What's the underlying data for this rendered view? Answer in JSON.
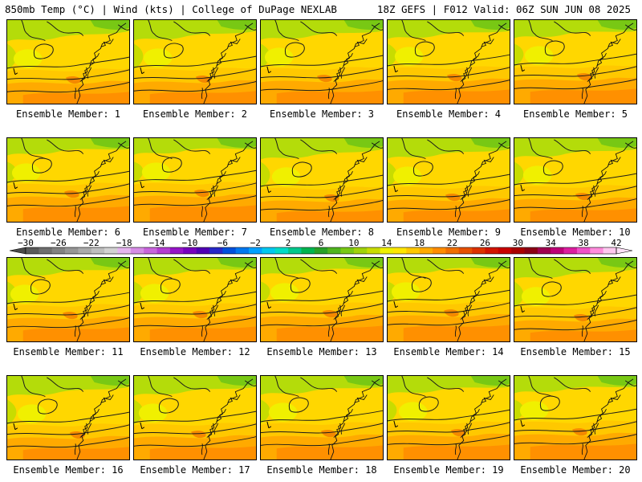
{
  "header": {
    "left": "850mb Temp (°C) | Wind (kts) | College of DuPage NEXLAB",
    "right": "18Z GEFS | F012 Valid: 06Z SUN JUN 08 2025"
  },
  "members": [
    {
      "label": "Ensemble Member: 1"
    },
    {
      "label": "Ensemble Member: 2"
    },
    {
      "label": "Ensemble Member: 3"
    },
    {
      "label": "Ensemble Member: 4"
    },
    {
      "label": "Ensemble Member: 5"
    },
    {
      "label": "Ensemble Member: 6"
    },
    {
      "label": "Ensemble Member: 7"
    },
    {
      "label": "Ensemble Member: 8"
    },
    {
      "label": "Ensemble Member: 9"
    },
    {
      "label": "Ensemble Member: 10"
    },
    {
      "label": "Ensemble Member: 11"
    },
    {
      "label": "Ensemble Member: 12"
    },
    {
      "label": "Ensemble Member: 13"
    },
    {
      "label": "Ensemble Member: 14"
    },
    {
      "label": "Ensemble Member: 15"
    },
    {
      "label": "Ensemble Member: 16"
    },
    {
      "label": "Ensemble Member: 17"
    },
    {
      "label": "Ensemble Member: 18"
    },
    {
      "label": "Ensemble Member: 19"
    },
    {
      "label": "Ensemble Member: 20"
    }
  ],
  "colorbar": {
    "tick_labels": [
      "−30",
      "−26",
      "−22",
      "−18",
      "−14",
      "−10",
      "−6",
      "−2",
      "2",
      "6",
      "10",
      "14",
      "18",
      "22",
      "26",
      "30",
      "34",
      "38",
      "42"
    ],
    "colors": [
      "#5a5a5a",
      "#6e6e6e",
      "#828282",
      "#969696",
      "#aaaaaa",
      "#bebebe",
      "#d2d2d2",
      "#e6b4f0",
      "#d68ce6",
      "#c864dc",
      "#b43cd2",
      "#9614c8",
      "#7800be",
      "#5000b4",
      "#2828c8",
      "#0050dc",
      "#0078f0",
      "#00a0ff",
      "#00c8f0",
      "#00dcc8",
      "#00c88c",
      "#00b450",
      "#28a028",
      "#50b41e",
      "#78c814",
      "#a0d20a",
      "#c8dc00",
      "#f0f000",
      "#ffe600",
      "#ffc800",
      "#ffaa00",
      "#ff8c00",
      "#f06e00",
      "#e65000",
      "#dc3200",
      "#d21400",
      "#c80000",
      "#aa0000",
      "#8c0014",
      "#a00050",
      "#be0078",
      "#dc1ea0",
      "#f050c8",
      "#ff8cdc",
      "#ffc8f0"
    ]
  }
}
